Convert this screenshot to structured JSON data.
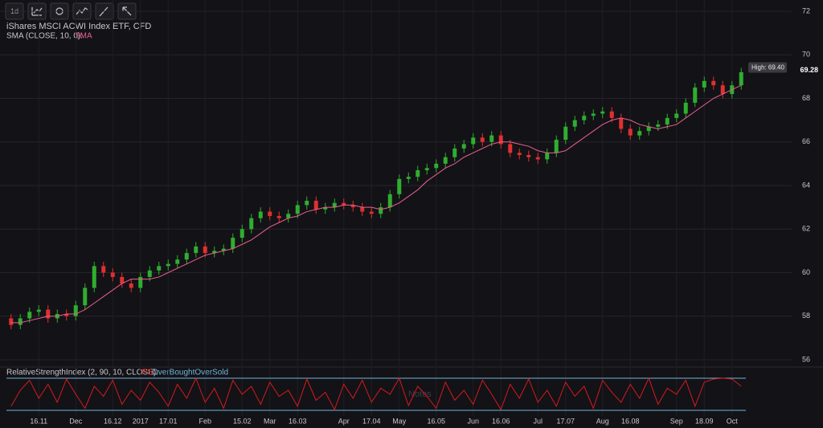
{
  "toolbar": [
    "1d"
  ],
  "chart_data": {
    "type": "candlestick",
    "title": "iShares MSCI ACWI Index ETF, CFD",
    "indicator_label": "SMA (CLOSE, 10, 0):",
    "indicator_name": "SMA",
    "rsi_label": "RelativeStrengthIndex (2, 90, 10, CLOSE):",
    "rsi_name": "RSI",
    "rsi_sub": "OverBoughtOverSold",
    "watermark": "Notes",
    "high_label": "High: 69.40",
    "last_price": 69.28,
    "up_color": "#2fae2f",
    "down_color": "#e0302f",
    "sma_color": "#e8608e",
    "rsi_color": "#d41c1c",
    "level_color": "#6fb6d8",
    "ylim": [
      56,
      72
    ],
    "yticks": [
      56,
      58,
      60,
      62,
      64,
      66,
      68,
      70,
      72
    ],
    "grid": true,
    "rsi_ylim": [
      0,
      100
    ],
    "rsi_levels": [
      10,
      90
    ],
    "categories": [
      null,
      null,
      null,
      "16.11",
      null,
      null,
      null,
      "Dec",
      null,
      null,
      null,
      "16.12",
      null,
      null,
      "2017",
      null,
      null,
      "17.01",
      null,
      null,
      null,
      "Feb",
      null,
      null,
      null,
      "15.02",
      null,
      null,
      "Mar",
      null,
      null,
      "16.03",
      null,
      null,
      null,
      null,
      "Apr",
      null,
      null,
      "17.04",
      null,
      null,
      "May",
      null,
      null,
      null,
      "16.05",
      null,
      null,
      null,
      "Jun",
      null,
      null,
      "16.06",
      null,
      null,
      null,
      "Jul",
      null,
      null,
      "17.07",
      null,
      null,
      null,
      "Aug",
      null,
      null,
      "16.08",
      null,
      null,
      null,
      null,
      "Sep",
      null,
      null,
      "18.09",
      null,
      null,
      "Oct",
      null
    ],
    "open": [
      57.9,
      57.6,
      57.9,
      58.2,
      58.3,
      57.9,
      58.1,
      58.0,
      58.5,
      59.3,
      60.3,
      60.0,
      59.8,
      59.5,
      59.3,
      59.8,
      60.1,
      60.3,
      60.4,
      60.6,
      60.9,
      61.2,
      60.9,
      61.0,
      61.1,
      61.6,
      62.0,
      62.5,
      62.8,
      62.6,
      62.5,
      62.7,
      63.1,
      63.3,
      62.9,
      63.0,
      63.2,
      63.1,
      63.0,
      62.8,
      62.7,
      63.0,
      63.6,
      64.3,
      64.4,
      64.7,
      64.8,
      65.0,
      65.3,
      65.7,
      65.9,
      66.2,
      66.0,
      66.3,
      65.9,
      65.5,
      65.4,
      65.3,
      65.2,
      65.5,
      66.1,
      66.7,
      67.0,
      67.2,
      67.3,
      67.4,
      67.1,
      66.6,
      66.3,
      66.5,
      66.7,
      66.8,
      67.1,
      67.3,
      67.8,
      68.5,
      68.8,
      68.6,
      68.2,
      68.6
    ],
    "high": [
      58.1,
      58.1,
      58.4,
      58.5,
      58.5,
      58.3,
      58.3,
      58.7,
      59.5,
      60.5,
      60.5,
      60.2,
      60.0,
      59.7,
      60.0,
      60.3,
      60.5,
      60.6,
      60.8,
      61.1,
      61.4,
      61.4,
      61.2,
      61.3,
      61.8,
      62.2,
      62.7,
      63.0,
      63.0,
      62.8,
      62.9,
      63.3,
      63.5,
      63.5,
      63.2,
      63.4,
      63.4,
      63.3,
      63.2,
      63.0,
      63.2,
      63.8,
      64.5,
      64.6,
      64.9,
      65.0,
      65.2,
      65.5,
      65.9,
      66.1,
      66.4,
      66.4,
      66.5,
      66.5,
      66.1,
      65.7,
      65.6,
      65.5,
      65.7,
      66.3,
      66.9,
      67.2,
      67.4,
      67.5,
      67.6,
      67.6,
      67.3,
      66.8,
      66.7,
      66.9,
      67.0,
      67.3,
      67.5,
      68.0,
      68.7,
      69.0,
      69.0,
      68.8,
      68.8,
      69.4
    ],
    "low": [
      57.4,
      57.4,
      57.7,
      58.0,
      57.7,
      57.7,
      57.8,
      57.8,
      58.3,
      59.1,
      59.8,
      59.6,
      59.3,
      59.1,
      59.1,
      59.6,
      59.9,
      60.1,
      60.2,
      60.4,
      60.7,
      60.7,
      60.7,
      60.8,
      60.9,
      61.4,
      61.8,
      62.3,
      62.4,
      62.3,
      62.3,
      62.5,
      62.9,
      62.7,
      62.7,
      62.8,
      62.9,
      62.8,
      62.6,
      62.5,
      62.5,
      62.8,
      63.4,
      64.1,
      64.2,
      64.5,
      64.6,
      64.8,
      65.1,
      65.5,
      65.7,
      65.8,
      65.8,
      65.7,
      65.3,
      65.2,
      65.1,
      65.0,
      65.0,
      65.3,
      65.9,
      66.5,
      66.8,
      67.0,
      67.1,
      66.9,
      66.4,
      66.1,
      66.1,
      66.3,
      66.5,
      66.6,
      66.9,
      67.1,
      67.6,
      68.3,
      68.4,
      68.0,
      68.0,
      68.4
    ],
    "close": [
      57.6,
      57.9,
      58.2,
      58.3,
      57.9,
      58.1,
      58.0,
      58.5,
      59.3,
      60.3,
      60.0,
      59.8,
      59.5,
      59.3,
      59.8,
      60.1,
      60.3,
      60.4,
      60.6,
      60.9,
      61.2,
      60.9,
      61.0,
      61.1,
      61.6,
      62.0,
      62.5,
      62.8,
      62.6,
      62.5,
      62.7,
      63.1,
      63.3,
      62.9,
      63.0,
      63.2,
      63.1,
      63.0,
      62.8,
      62.7,
      63.0,
      63.6,
      64.3,
      64.4,
      64.7,
      64.8,
      65.0,
      65.3,
      65.7,
      65.9,
      66.2,
      66.0,
      66.3,
      65.9,
      65.5,
      65.4,
      65.3,
      65.2,
      65.5,
      66.1,
      66.7,
      67.0,
      67.2,
      67.3,
      67.4,
      67.1,
      66.6,
      66.3,
      66.5,
      66.7,
      66.8,
      67.1,
      67.3,
      67.8,
      68.5,
      68.8,
      68.6,
      68.2,
      68.6,
      69.2
    ],
    "sma": [
      57.7,
      57.7,
      57.8,
      57.9,
      58.0,
      58.0,
      58.1,
      58.1,
      58.3,
      58.6,
      58.9,
      59.2,
      59.5,
      59.7,
      59.7,
      59.7,
      59.8,
      60.0,
      60.2,
      60.4,
      60.6,
      60.8,
      60.9,
      61.0,
      61.1,
      61.3,
      61.5,
      61.8,
      62.1,
      62.3,
      62.5,
      62.6,
      62.8,
      62.9,
      63.0,
      63.0,
      63.1,
      63.1,
      63.0,
      63.0,
      62.9,
      63.0,
      63.2,
      63.5,
      63.8,
      64.2,
      64.5,
      64.8,
      65.0,
      65.3,
      65.5,
      65.7,
      65.9,
      66.0,
      66.0,
      65.9,
      65.8,
      65.6,
      65.5,
      65.5,
      65.6,
      65.9,
      66.2,
      66.5,
      66.8,
      67.0,
      67.1,
      67.0,
      66.8,
      66.7,
      66.6,
      66.7,
      66.8,
      67.1,
      67.4,
      67.7,
      68.0,
      68.2,
      68.4,
      68.6
    ],
    "rsi": [
      20,
      60,
      85,
      40,
      75,
      30,
      88,
      50,
      15,
      70,
      45,
      85,
      25,
      60,
      35,
      80,
      55,
      20,
      75,
      40,
      90,
      30,
      65,
      15,
      85,
      50,
      70,
      25,
      80,
      45,
      60,
      20,
      88,
      35,
      55,
      12,
      75,
      40,
      85,
      30,
      65,
      50,
      90,
      22,
      70,
      45,
      15,
      80,
      35,
      60,
      25,
      85,
      50,
      12,
      75,
      40,
      88,
      30,
      60,
      20,
      80,
      45,
      70,
      15,
      85,
      55,
      30,
      75,
      40,
      90,
      25,
      65,
      50,
      85,
      20,
      80,
      88,
      90,
      88,
      70
    ]
  }
}
